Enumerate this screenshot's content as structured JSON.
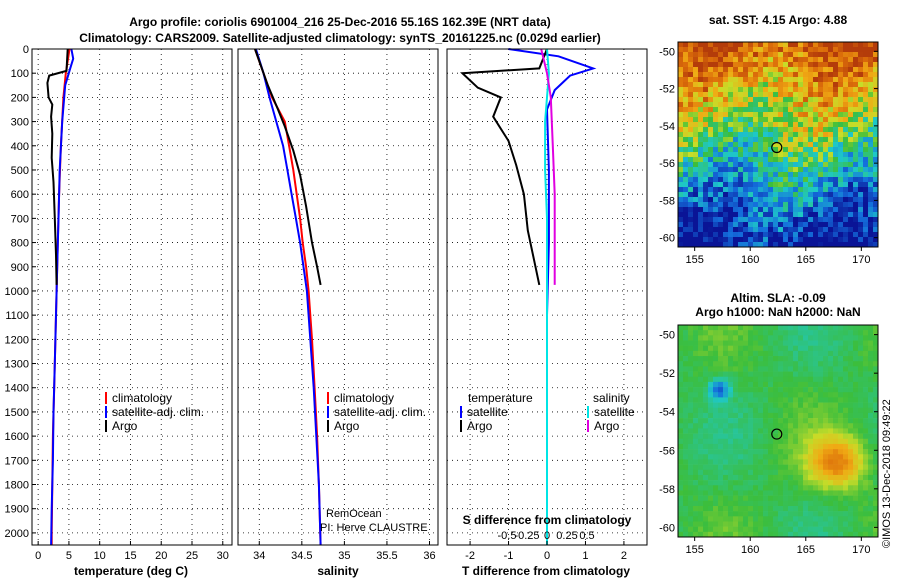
{
  "header": {
    "line1": "Argo profile: coriolis 6901004_216 25-Dec-2016 55.16S 162.39E (NRT data)",
    "line2": "Climatology: CARS2009. Satellite-adjusted climatology: synTS_20161225.nc (0.029d earlier)"
  },
  "colors": {
    "climatology": "#ff0000",
    "satellite": "#0000ff",
    "argo": "#000000",
    "sat_salinity": "#00e5e5",
    "argo_salinity": "#e000e0"
  },
  "chart_data": [
    {
      "type": "line",
      "id": "temperature",
      "xlabel": "temperature (deg C)",
      "xlim": [
        -1,
        31.5
      ],
      "ylim": [
        2050,
        0
      ],
      "xticks": [
        0,
        5,
        10,
        15,
        20,
        25,
        30
      ],
      "yticks": [
        0,
        100,
        200,
        300,
        400,
        500,
        600,
        700,
        800,
        900,
        1000,
        1100,
        1200,
        1300,
        1400,
        1500,
        1600,
        1700,
        1800,
        1900,
        2000
      ],
      "legend": [
        "climatology",
        "satellite-adj. clim.",
        "Argo"
      ],
      "series": [
        {
          "name": "climatology",
          "color": "#ff0000",
          "points": [
            [
              5.1,
              0
            ],
            [
              4.8,
              50
            ],
            [
              4.5,
              100
            ],
            [
              4.1,
              200
            ],
            [
              3.7,
              400
            ],
            [
              3.4,
              600
            ],
            [
              3.2,
              800
            ],
            [
              3.0,
              1000
            ],
            [
              2.8,
              1200
            ],
            [
              2.6,
              1400
            ],
            [
              2.4,
              1600
            ],
            [
              2.3,
              1800
            ],
            [
              2.2,
              2000
            ],
            [
              2.2,
              2050
            ]
          ]
        },
        {
          "name": "satellite-adj. clim.",
          "color": "#0000ff",
          "points": [
            [
              5.4,
              0
            ],
            [
              5.7,
              40
            ],
            [
              5.2,
              80
            ],
            [
              4.4,
              150
            ],
            [
              3.9,
              300
            ],
            [
              3.5,
              500
            ],
            [
              3.3,
              700
            ],
            [
              3.1,
              900
            ],
            [
              2.9,
              1100
            ],
            [
              2.7,
              1300
            ],
            [
              2.5,
              1500
            ],
            [
              2.4,
              1700
            ],
            [
              2.2,
              1900
            ],
            [
              2.1,
              2050
            ]
          ]
        },
        {
          "name": "Argo",
          "color": "#000000",
          "points": [
            [
              4.8,
              0
            ],
            [
              4.6,
              90
            ],
            [
              1.8,
              110
            ],
            [
              1.5,
              140
            ],
            [
              1.7,
              200
            ],
            [
              2.3,
              230
            ],
            [
              2.1,
              280
            ],
            [
              2.3,
              350
            ],
            [
              2.2,
              450
            ],
            [
              2.5,
              550
            ],
            [
              2.7,
              700
            ],
            [
              2.9,
              850
            ],
            [
              3.0,
              975
            ]
          ]
        }
      ]
    },
    {
      "type": "line",
      "id": "salinity",
      "xlabel": "salinity",
      "xlim": [
        33.75,
        36.1
      ],
      "ylim": [
        2050,
        0
      ],
      "xticks": [
        34,
        34.5,
        35,
        35.5,
        36
      ],
      "yticks": [
        0,
        100,
        200,
        300,
        400,
        500,
        600,
        700,
        800,
        900,
        1000,
        1100,
        1200,
        1300,
        1400,
        1500,
        1600,
        1700,
        1800,
        1900,
        2000
      ],
      "legend": [
        "climatology",
        "satellite-adj. clim.",
        "Argo"
      ],
      "credit": [
        "RemOcean",
        "PI: Herve CLAUSTRE"
      ],
      "series": [
        {
          "name": "climatology",
          "color": "#ff0000",
          "points": [
            [
              33.95,
              0
            ],
            [
              34.05,
              100
            ],
            [
              34.15,
              200
            ],
            [
              34.3,
              300
            ],
            [
              34.35,
              400
            ],
            [
              34.4,
              500
            ],
            [
              34.44,
              600
            ],
            [
              34.48,
              700
            ],
            [
              34.51,
              800
            ],
            [
              34.55,
              900
            ],
            [
              34.58,
              1000
            ],
            [
              34.62,
              1200
            ],
            [
              34.65,
              1400
            ],
            [
              34.68,
              1600
            ],
            [
              34.7,
              1800
            ],
            [
              34.72,
              2050
            ]
          ]
        },
        {
          "name": "satellite-adj. clim.",
          "color": "#0000ff",
          "points": [
            [
              33.96,
              0
            ],
            [
              34.05,
              100
            ],
            [
              34.12,
              200
            ],
            [
              34.2,
              300
            ],
            [
              34.28,
              400
            ],
            [
              34.33,
              500
            ],
            [
              34.38,
              600
            ],
            [
              34.43,
              700
            ],
            [
              34.48,
              800
            ],
            [
              34.52,
              900
            ],
            [
              34.56,
              1000
            ],
            [
              34.6,
              1200
            ],
            [
              34.64,
              1400
            ],
            [
              34.67,
              1600
            ],
            [
              34.7,
              1800
            ],
            [
              34.72,
              2050
            ]
          ]
        },
        {
          "name": "Argo",
          "color": "#000000",
          "points": [
            [
              33.95,
              0
            ],
            [
              34.1,
              150
            ],
            [
              34.22,
              250
            ],
            [
              34.3,
              320
            ],
            [
              34.4,
              420
            ],
            [
              34.48,
              520
            ],
            [
              34.55,
              650
            ],
            [
              34.62,
              800
            ],
            [
              34.68,
              900
            ],
            [
              34.72,
              975
            ]
          ]
        }
      ]
    },
    {
      "type": "line",
      "id": "differences",
      "xlabel": "T difference from climatology",
      "toplabel": "S difference from climatology",
      "xlim": [
        -2.6,
        2.6
      ],
      "ylim": [
        2050,
        0
      ],
      "xticks": [
        -2,
        -1,
        0,
        1,
        2
      ],
      "xtick_labels": [
        "-2",
        "-1",
        "0",
        "1",
        "2"
      ],
      "sticks": [
        -0.5,
        -0.25,
        0,
        0.25,
        0.5
      ],
      "stick_labels": [
        "-0.5",
        "-0.25",
        "0",
        "0.25",
        "0.5"
      ],
      "yticks": [
        0,
        100,
        200,
        300,
        400,
        500,
        600,
        700,
        800,
        900,
        1000,
        1100,
        1200,
        1300,
        1400,
        1500,
        1600,
        1700,
        1800,
        1900,
        2000
      ],
      "legend_titles": [
        "temperature",
        "salinity"
      ],
      "legend_left": [
        "satellite",
        "Argo"
      ],
      "legend_right": [
        "satellite",
        "Argo"
      ],
      "series": [
        {
          "name": "T satellite",
          "color": "#0000ff",
          "points": [
            [
              -1,
              0
            ],
            [
              0.3,
              30
            ],
            [
              1.2,
              80
            ],
            [
              0.6,
              110
            ],
            [
              0.2,
              170
            ],
            [
              0,
              250
            ],
            [
              0.05,
              500
            ],
            [
              0.05,
              800
            ],
            [
              0,
              1100
            ],
            [
              0,
              1500
            ],
            [
              0,
              2050
            ]
          ]
        },
        {
          "name": "T Argo",
          "color": "#000000",
          "points": [
            [
              0,
              0
            ],
            [
              -0.2,
              80
            ],
            [
              -2.2,
              100
            ],
            [
              -1.8,
              160
            ],
            [
              -1.2,
              200
            ],
            [
              -1.4,
              280
            ],
            [
              -1.0,
              380
            ],
            [
              -0.8,
              480
            ],
            [
              -0.6,
              600
            ],
            [
              -0.5,
              750
            ],
            [
              -0.3,
              900
            ],
            [
              -0.2,
              975
            ]
          ]
        },
        {
          "name": "S satellite",
          "color": "#00e5e5",
          "points": [
            [
              0,
              0
            ],
            [
              0.05,
              100
            ],
            [
              0,
              200
            ],
            [
              -0.05,
              300
            ],
            [
              -0.05,
              500
            ],
            [
              0,
              700
            ],
            [
              0,
              1000
            ],
            [
              0,
              1500
            ],
            [
              0,
              2050
            ]
          ]
        },
        {
          "name": "S Argo",
          "color": "#e000e0",
          "points": [
            [
              -0.15,
              0
            ],
            [
              0,
              100
            ],
            [
              0.1,
              200
            ],
            [
              0.15,
              400
            ],
            [
              0.2,
              600
            ],
            [
              0.2,
              800
            ],
            [
              0.2,
              975
            ]
          ]
        }
      ]
    },
    {
      "type": "heatmap",
      "id": "sst",
      "title": "sat. SST: 4.15 Argo: 4.88",
      "xlim": [
        153.5,
        171.5
      ],
      "ylim": [
        -60.5,
        -49.5
      ],
      "xticks": [
        155,
        160,
        165,
        170
      ],
      "yticks": [
        -50,
        -52,
        -54,
        -56,
        -58,
        -60
      ],
      "marker": [
        162.39,
        -55.16
      ]
    },
    {
      "type": "heatmap",
      "id": "sla",
      "title": "Altim. SLA: -0.09",
      "subtitle": "Argo h1000: NaN h2000: NaN",
      "xlim": [
        153.5,
        171.5
      ],
      "ylim": [
        -60.5,
        -49.5
      ],
      "xticks": [
        155,
        160,
        165,
        170
      ],
      "yticks": [
        -50,
        -52,
        -54,
        -56,
        -58,
        -60
      ],
      "marker": [
        162.39,
        -55.16
      ]
    }
  ],
  "stamp": "©IMOS 13-Dec-2018 09:49:22"
}
